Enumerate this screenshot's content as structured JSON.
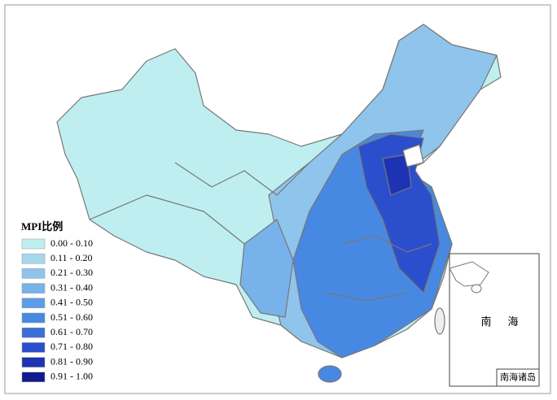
{
  "legend": {
    "title": "MPI比例",
    "items": [
      {
        "label": "0.00 - 0.10",
        "color": "#bfeef0"
      },
      {
        "label": "0.11 - 0.20",
        "color": "#a6d8ee"
      },
      {
        "label": "0.21 - 0.30",
        "color": "#8fc4ec"
      },
      {
        "label": "0.31 - 0.40",
        "color": "#78b2ea"
      },
      {
        "label": "0.41 - 0.50",
        "color": "#5c9de6"
      },
      {
        "label": "0.51 - 0.60",
        "color": "#4789e2"
      },
      {
        "label": "0.61 - 0.70",
        "color": "#3a6fd8"
      },
      {
        "label": "0.71 - 0.80",
        "color": "#2b4fcc"
      },
      {
        "label": "0.81 - 0.90",
        "color": "#1e33b3"
      },
      {
        "label": "0.91 - 1.00",
        "color": "#101a8c"
      }
    ]
  },
  "inset": {
    "title": "南海诸岛",
    "sea_label_1": "南",
    "sea_label_2": "海"
  }
}
